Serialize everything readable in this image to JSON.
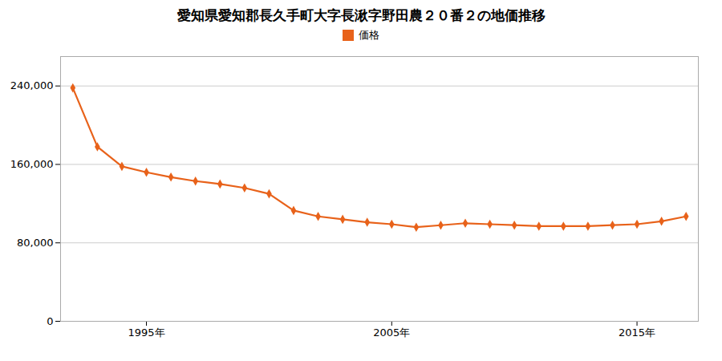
{
  "chart_data": {
    "type": "line",
    "title": "愛知県愛知郡長久手町大字長湫字野田農２０番２の地価推移",
    "x": [
      1992,
      1993,
      1994,
      1995,
      1996,
      1997,
      1998,
      1999,
      2000,
      2001,
      2002,
      2003,
      2004,
      2005,
      2006,
      2007,
      2008,
      2009,
      2010,
      2011,
      2012,
      2013,
      2014,
      2015,
      2016,
      2017
    ],
    "series": [
      {
        "name": "価格",
        "color": "#e8621a",
        "marker": "diamond",
        "line_style": "solid",
        "values": [
          238000,
          178000,
          158000,
          152000,
          147000,
          143000,
          140000,
          136000,
          130000,
          113000,
          107000,
          104000,
          101000,
          99000,
          96000,
          98000,
          100000,
          99000,
          98000,
          97000,
          97000,
          97000,
          98000,
          99000,
          102000,
          107000
        ]
      }
    ],
    "xlim": [
      1991.5,
      2017.5
    ],
    "xticks": [
      {
        "value": 1995,
        "label": "1995年"
      },
      {
        "value": 2005,
        "label": "2005年"
      },
      {
        "value": 2015,
        "label": "2015年"
      }
    ],
    "ylim": [
      0,
      270000
    ],
    "yticks": [
      0,
      {
        "value": 80000,
        "label": "80,000"
      },
      {
        "value": 160000,
        "label": "160,000"
      },
      {
        "value": 240000,
        "label": "240,000"
      }
    ],
    "grid": "y",
    "legend": "top"
  }
}
